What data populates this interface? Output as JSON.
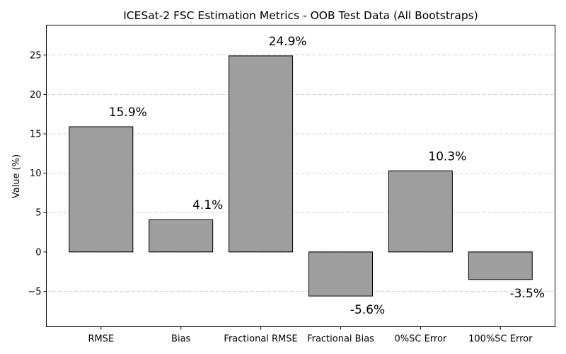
{
  "chart_data": {
    "type": "bar",
    "title": "ICESat-2 FSC Estimation Metrics - OOB Test Data (All Bootstraps)",
    "xlabel": "",
    "ylabel": "Value (%)",
    "categories": [
      "RMSE",
      "Bias",
      "Fractional RMSE",
      "Fractional Bias",
      "0%SC Error",
      "100%SC Error"
    ],
    "values": [
      15.9,
      4.1,
      24.9,
      -5.6,
      10.3,
      -3.5
    ],
    "data_labels": [
      "15.9%",
      "4.1%",
      "24.9%",
      "-5.6%",
      "10.3%",
      "-3.5%"
    ],
    "ylim": [
      -9.5,
      28.8
    ],
    "yticks": [
      -5,
      0,
      5,
      10,
      15,
      20,
      25
    ],
    "ytick_labels": [
      "−5",
      "0",
      "5",
      "10",
      "15",
      "20",
      "25"
    ],
    "grid": true,
    "bar_color": "#9e9e9e",
    "edge_color": "#000000"
  }
}
